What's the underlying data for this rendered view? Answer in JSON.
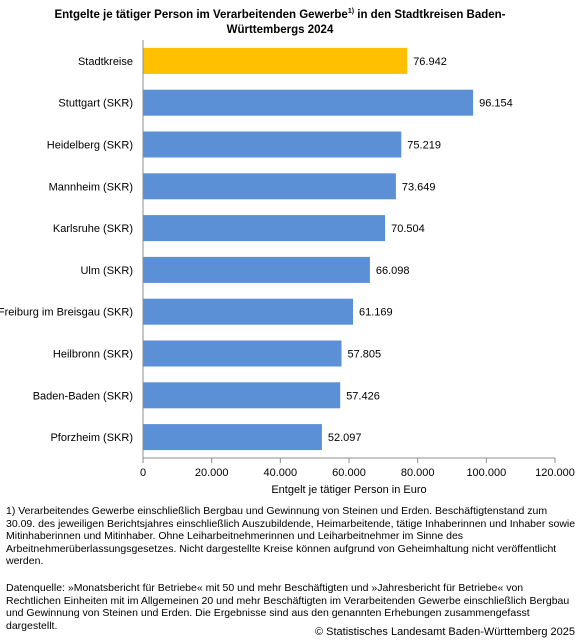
{
  "title": {
    "line1_prefix": "Entgelte je tätiger Person im Verarbeitenden Gewerbe",
    "footnote_mark": "1)",
    "line1_suffix": " in den Stadtkreisen Baden-",
    "line2": "Württembergs 2024"
  },
  "chart_data": {
    "type": "bar",
    "orientation": "horizontal",
    "categories": [
      "Stadtkreise",
      "Stuttgart (SKR)",
      "Heidelberg (SKR)",
      "Mannheim (SKR)",
      "Karlsruhe (SKR)",
      "Ulm (SKR)",
      "Freiburg im Breisgau (SKR)",
      "Heilbronn (SKR)",
      "Baden-Baden (SKR)",
      "Pforzheim (SKR)"
    ],
    "values": [
      76942,
      96154,
      75219,
      73649,
      70504,
      66098,
      61169,
      57805,
      57426,
      52097
    ],
    "value_labels": [
      "76.942",
      "96.154",
      "75.219",
      "73.649",
      "70.504",
      "66.098",
      "61.169",
      "57.805",
      "57.426",
      "52.097"
    ],
    "highlight_index": 0,
    "colors": {
      "highlight": "#FFC000",
      "default": "#5B8FD6",
      "axis": "#8c8c8c"
    },
    "xlim": [
      0,
      120000
    ],
    "xticks": [
      0,
      20000,
      40000,
      60000,
      80000,
      100000,
      120000
    ],
    "xtick_labels": [
      "0",
      "20.000",
      "40.000",
      "60.000",
      "80.000",
      "100.000",
      "120.000"
    ],
    "xlabel": "Entgelt je tätiger Person in Euro",
    "ylabel": "",
    "grid": false
  },
  "footnotes": {
    "note1": "1)  Verarbeitendes Gewerbe einschließlich Bergbau und Gewinnung von Steinen und Erden. Beschäftigtenstand zum 30.09. des jeweiligen Berichtsjahres einschließlich Auszubildende, Heimarbeitende, tätige Inhaberinnen und Inhaber sowie Mitinhaberinnen und Mitinhaber.  Ohne Leiharbeitnehmerinnen und Leiharbeitnehmer im Sinne des Arbeitnehmerüberlassungsgesetzes. Nicht dargestellte Kreise können aufgrund von Geheimhaltung nicht veröffentlicht werden.",
    "source": "Datenquelle:  »Monatsbericht für Betriebe« mit 50 und mehr Beschäftigten und »Jahresbericht für Betriebe« von Rechtlichen Einheiten mit im  Allgemeinen 20 und mehr Beschäftigten im Verarbeitenden Gewerbe einschließlich Bergbau und Gewinnung von Steinen und Erden. Die Ergebnisse sind aus den genannten Erhebungen zusammengefasst dargestellt.",
    "copyright": "© Statistisches Landesamt Baden-Württemberg 2025"
  }
}
